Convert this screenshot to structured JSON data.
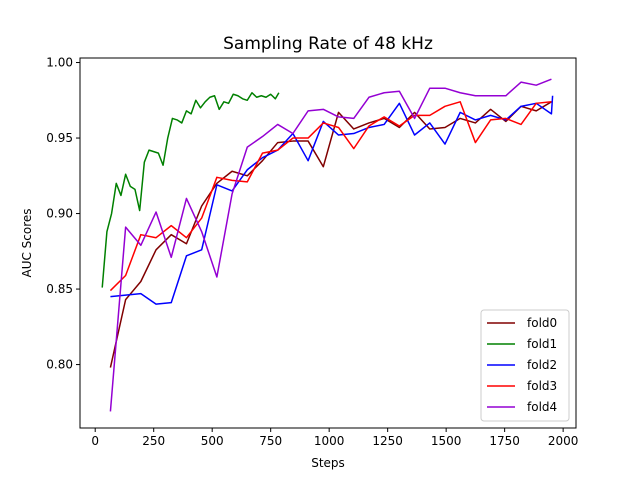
{
  "chart_data": {
    "type": "line",
    "title": "Sampling Rate of 48 kHz",
    "xlabel": "Steps",
    "ylabel": "AUC Scores",
    "xlim": [
      -65,
      2055
    ],
    "ylim": [
      0.758,
      1.003
    ],
    "xticks": [
      0,
      250,
      500,
      750,
      1000,
      1250,
      1500,
      1750,
      2000
    ],
    "xtick_labels": [
      "0",
      "250",
      "500",
      "750",
      "1000",
      "1250",
      "1500",
      "1750",
      "2000"
    ],
    "yticks": [
      0.8,
      0.85,
      0.9,
      0.95,
      1.0
    ],
    "ytick_labels": [
      "0.80",
      "0.85",
      "0.90",
      "0.95",
      "1.00"
    ],
    "grid": false,
    "legend_position": "bottom-right",
    "series": [
      {
        "name": "fold0",
        "color": "#800000",
        "x": [
          65,
          130,
          195,
          260,
          325,
          390,
          455,
          520,
          585,
          650,
          715,
          780,
          845,
          910,
          975,
          1040,
          1105,
          1170,
          1235,
          1300,
          1365,
          1430,
          1495,
          1560,
          1625,
          1690,
          1755,
          1820,
          1885,
          1950
        ],
        "y": [
          0.798,
          0.843,
          0.855,
          0.876,
          0.886,
          0.88,
          0.905,
          0.92,
          0.928,
          0.925,
          0.935,
          0.947,
          0.948,
          0.948,
          0.931,
          0.967,
          0.956,
          0.96,
          0.963,
          0.957,
          0.967,
          0.956,
          0.957,
          0.963,
          0.96,
          0.969,
          0.961,
          0.971,
          0.968,
          0.974
        ]
      },
      {
        "name": "fold1",
        "color": "#008000",
        "x": [
          30,
          50,
          70,
          90,
          110,
          130,
          150,
          170,
          190,
          210,
          230,
          250,
          270,
          290,
          310,
          330,
          350,
          370,
          390,
          410,
          430,
          450,
          470,
          490,
          510,
          530,
          550,
          570,
          590,
          610,
          630,
          650,
          670,
          690,
          710,
          730,
          750,
          770,
          785
        ],
        "y": [
          0.851,
          0.888,
          0.9,
          0.92,
          0.912,
          0.926,
          0.918,
          0.916,
          0.902,
          0.934,
          0.942,
          0.941,
          0.94,
          0.932,
          0.95,
          0.963,
          0.962,
          0.96,
          0.968,
          0.966,
          0.975,
          0.97,
          0.974,
          0.977,
          0.978,
          0.969,
          0.974,
          0.973,
          0.979,
          0.978,
          0.976,
          0.975,
          0.98,
          0.977,
          0.978,
          0.977,
          0.979,
          0.976,
          0.98
        ]
      },
      {
        "name": "fold2",
        "color": "#0000ff",
        "x": [
          65,
          130,
          195,
          260,
          325,
          390,
          455,
          520,
          585,
          650,
          715,
          780,
          845,
          910,
          975,
          1040,
          1105,
          1170,
          1235,
          1300,
          1365,
          1430,
          1495,
          1560,
          1625,
          1690,
          1755,
          1820,
          1885,
          1950,
          1955
        ],
        "y": [
          0.845,
          0.846,
          0.847,
          0.84,
          0.841,
          0.872,
          0.876,
          0.919,
          0.915,
          0.929,
          0.937,
          0.942,
          0.953,
          0.935,
          0.961,
          0.952,
          0.953,
          0.957,
          0.959,
          0.973,
          0.952,
          0.96,
          0.946,
          0.967,
          0.962,
          0.965,
          0.962,
          0.971,
          0.973,
          0.966,
          0.978
        ]
      },
      {
        "name": "fold3",
        "color": "#ff0000",
        "x": [
          65,
          130,
          195,
          260,
          325,
          390,
          455,
          520,
          585,
          650,
          715,
          780,
          845,
          910,
          975,
          1040,
          1105,
          1170,
          1235,
          1300,
          1365,
          1430,
          1495,
          1560,
          1625,
          1690,
          1755,
          1820,
          1885,
          1950
        ],
        "y": [
          0.849,
          0.859,
          0.886,
          0.884,
          0.892,
          0.884,
          0.897,
          0.924,
          0.922,
          0.921,
          0.94,
          0.942,
          0.95,
          0.95,
          0.96,
          0.957,
          0.943,
          0.958,
          0.964,
          0.958,
          0.965,
          0.965,
          0.971,
          0.974,
          0.947,
          0.962,
          0.963,
          0.959,
          0.973,
          0.974
        ]
      },
      {
        "name": "fold4",
        "color": "#9400d3",
        "x": [
          65,
          130,
          195,
          260,
          325,
          390,
          455,
          520,
          585,
          650,
          715,
          780,
          845,
          910,
          975,
          1040,
          1105,
          1170,
          1235,
          1300,
          1365,
          1430,
          1495,
          1560,
          1625,
          1690,
          1755,
          1820,
          1885,
          1950
        ],
        "y": [
          0.769,
          0.891,
          0.879,
          0.901,
          0.871,
          0.91,
          0.888,
          0.858,
          0.913,
          0.944,
          0.951,
          0.959,
          0.953,
          0.968,
          0.969,
          0.964,
          0.963,
          0.977,
          0.98,
          0.981,
          0.963,
          0.983,
          0.983,
          0.98,
          0.978,
          0.978,
          0.978,
          0.987,
          0.985,
          0.989
        ]
      }
    ]
  }
}
